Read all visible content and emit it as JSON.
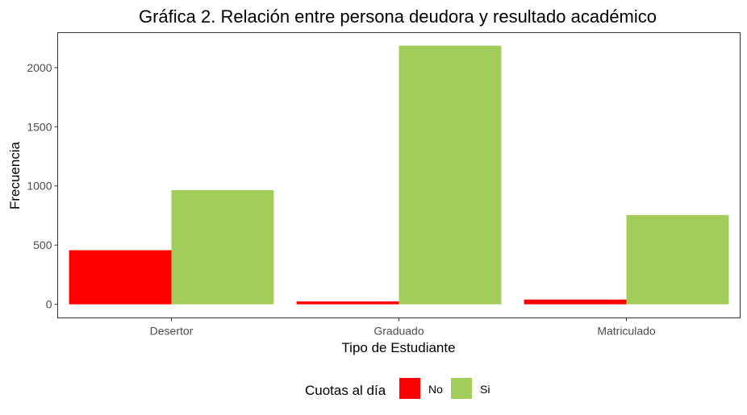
{
  "chart_data": {
    "type": "bar",
    "title": "Gráfica 2. Relación entre persona deudora y resultado académico",
    "xlabel": "Tipo de Estudiante",
    "ylabel": "Frecuencia",
    "categories": [
      "Desertor",
      "Graduado",
      "Matriculado"
    ],
    "series": [
      {
        "name": "No",
        "color": "#ff0000",
        "values": [
          457,
          24,
          40
        ]
      },
      {
        "name": "Si",
        "color": "#a2cd5a",
        "values": [
          964,
          2185,
          754
        ]
      }
    ],
    "ylim": [
      -115,
      2295
    ],
    "yticks": [
      0,
      500,
      1000,
      1500,
      2000
    ],
    "ytick_labels": [
      "0",
      "500",
      "1000",
      "1500",
      "2000"
    ],
    "grid": false,
    "legend": {
      "title": "Cuotas al día",
      "position": "bottom"
    }
  }
}
